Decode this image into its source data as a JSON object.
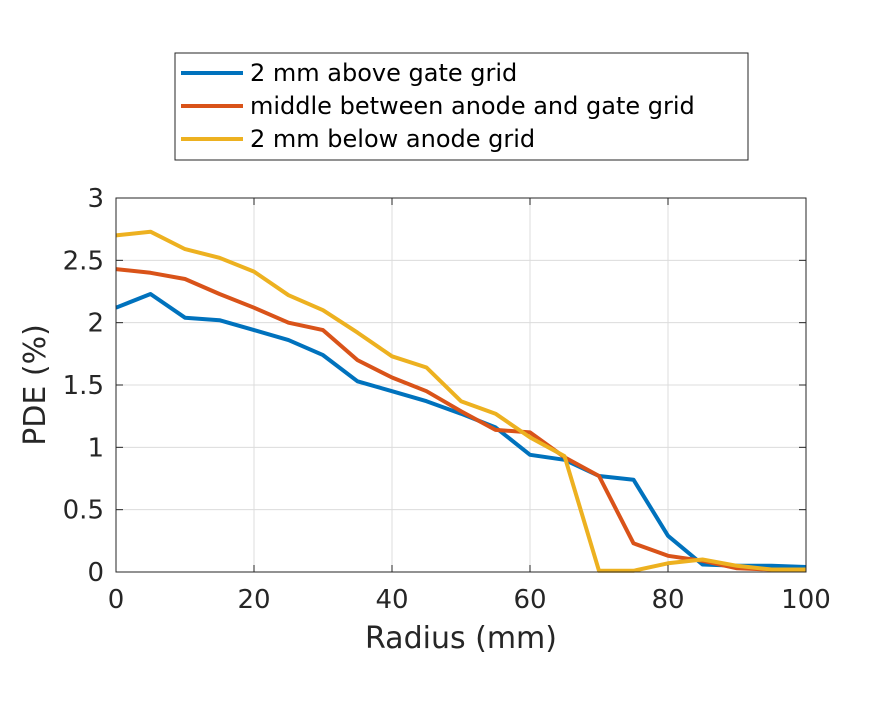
{
  "chart_data": {
    "type": "line",
    "title": "",
    "xlabel": "Radius (mm)",
    "ylabel": "PDE (%)",
    "xlim": [
      0,
      100
    ],
    "ylim": [
      0,
      3
    ],
    "xticks": [
      0,
      20,
      40,
      60,
      80,
      100
    ],
    "yticks": [
      0,
      0.5,
      1,
      1.5,
      2,
      2.5,
      3
    ],
    "xtick_labels": [
      "0",
      "20",
      "40",
      "60",
      "80",
      "100"
    ],
    "ytick_labels": [
      "0",
      "0.5",
      "1",
      "1.5",
      "2",
      "2.5",
      "3"
    ],
    "grid": true,
    "legend_position": "top-outside",
    "x": [
      0,
      5,
      10,
      15,
      20,
      25,
      30,
      35,
      40,
      45,
      50,
      55,
      60,
      65,
      70,
      75,
      80,
      85,
      90,
      95,
      100
    ],
    "series": [
      {
        "name": "2 mm above gate grid",
        "color": "#0072BD",
        "values": [
          2.12,
          2.23,
          2.04,
          2.02,
          1.94,
          1.86,
          1.74,
          1.53,
          1.45,
          1.37,
          1.27,
          1.16,
          0.94,
          0.9,
          0.77,
          0.74,
          0.29,
          0.06,
          0.05,
          0.05,
          0.04
        ]
      },
      {
        "name": "middle between anode and gate grid",
        "color": "#D95319",
        "values": [
          2.43,
          2.4,
          2.35,
          2.23,
          2.12,
          2.0,
          1.94,
          1.7,
          1.56,
          1.45,
          1.29,
          1.14,
          1.12,
          0.92,
          0.77,
          0.23,
          0.13,
          0.09,
          0.03,
          0.02,
          0.02
        ]
      },
      {
        "name": "2 mm below anode grid",
        "color": "#EDB120",
        "values": [
          2.7,
          2.73,
          2.59,
          2.52,
          2.41,
          2.22,
          2.1,
          1.92,
          1.73,
          1.64,
          1.37,
          1.27,
          1.08,
          0.93,
          0.01,
          0.01,
          0.07,
          0.1,
          0.05,
          0.02,
          0.02
        ]
      }
    ]
  }
}
